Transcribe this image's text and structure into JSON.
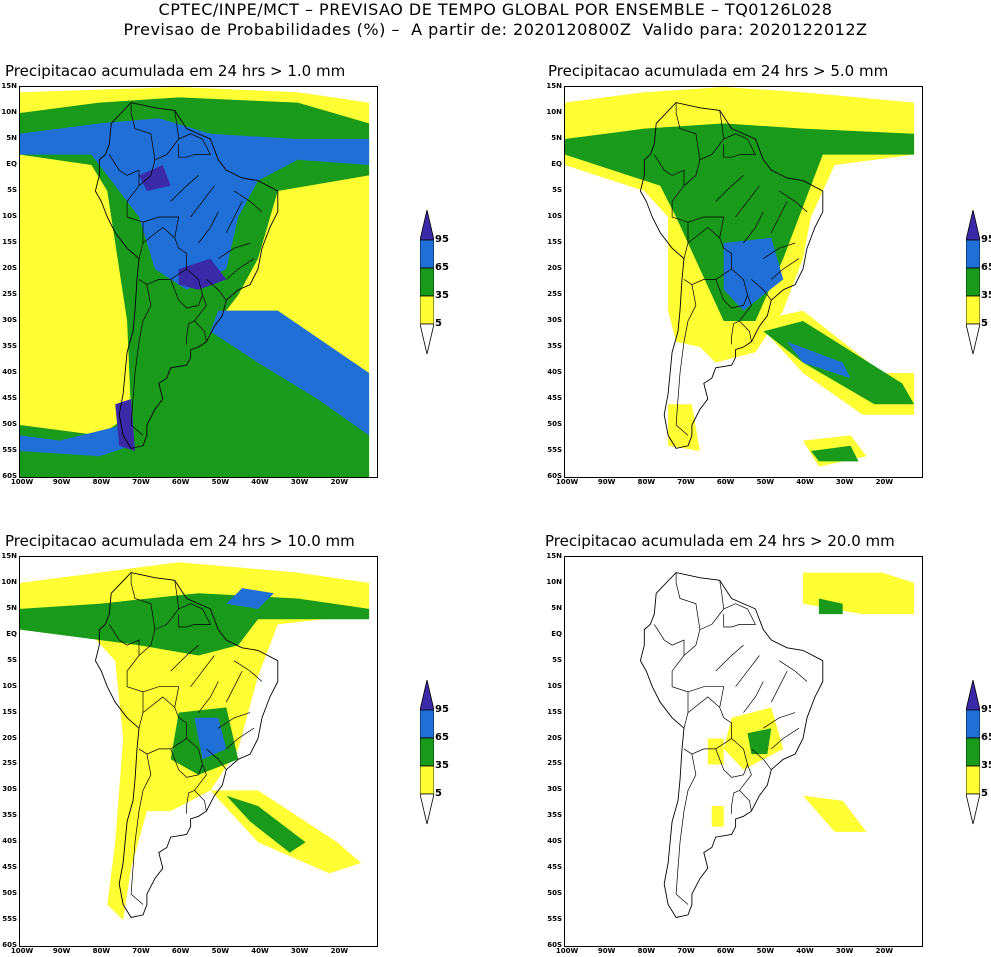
{
  "header": {
    "line1": "CPTEC/INPE/MCT – PREVISAO DE TEMPO GLOBAL POR ENSEMBLE – TQ0126L028",
    "line2": "Previsao de Probabilidades (%) –  A partir de: 2020120800Z  Valido para: 2020122012Z"
  },
  "axes": {
    "lat_labels": [
      "15N",
      "10N",
      "5N",
      "EQ",
      "5S",
      "10S",
      "15S",
      "20S",
      "25S",
      "30S",
      "35S",
      "40S",
      "45S",
      "50S",
      "55S",
      "60S"
    ],
    "lon_labels": [
      "100W",
      "90W",
      "80W",
      "70W",
      "60W",
      "50W",
      "40W",
      "30W",
      "20W"
    ]
  },
  "colorbar": {
    "levels": [
      "95",
      "65",
      "35",
      "5"
    ],
    "colors": {
      "c5": "#ffff33",
      "c35": "#1a9a1a",
      "c65": "#1f6fd6",
      "c95": "#3a2aa8"
    }
  },
  "panels": [
    {
      "title": "Precipitacao acumulada em 24 hrs > 1.0 mm"
    },
    {
      "title": "Precipitacao acumulada em 24 hrs > 5.0 mm"
    },
    {
      "title": "Precipitacao acumulada em 24 hrs > 10.0 mm"
    },
    {
      "title": "Precipitacao acumulada em 24 hrs > 20.0 mm"
    }
  ]
}
